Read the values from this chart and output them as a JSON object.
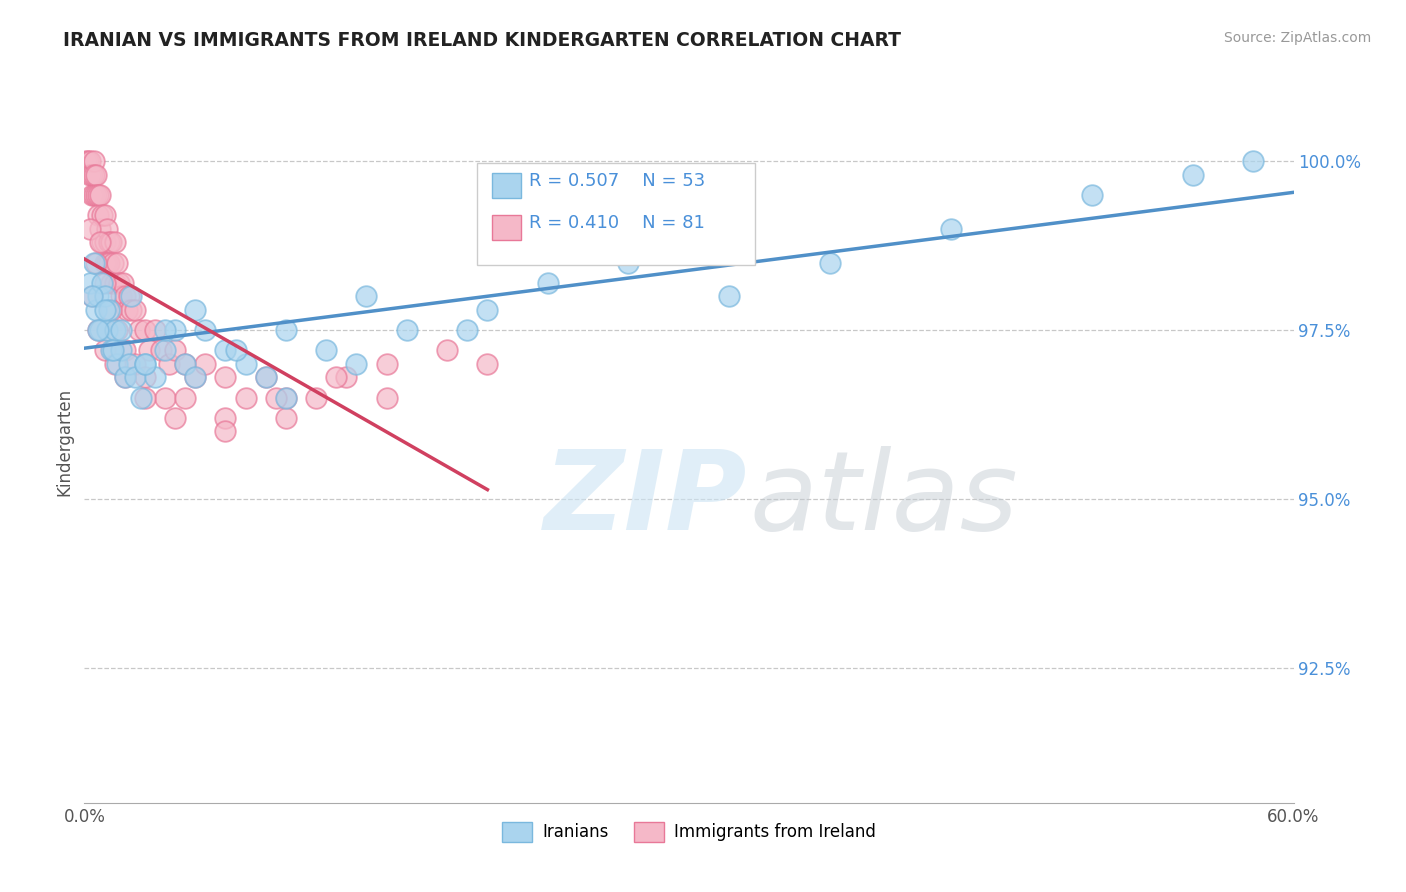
{
  "title": "IRANIAN VS IMMIGRANTS FROM IRELAND KINDERGARTEN CORRELATION CHART",
  "source_text": "Source: ZipAtlas.com",
  "ylabel": "Kindergarten",
  "x_min": 0.0,
  "x_max": 60.0,
  "y_min": 90.5,
  "y_max": 101.2,
  "x_ticks": [
    0.0,
    10.0,
    20.0,
    30.0,
    40.0,
    50.0,
    60.0
  ],
  "x_tick_labels": [
    "0.0%",
    "",
    "",
    "",
    "",
    "",
    "60.0%"
  ],
  "y_ticks": [
    92.5,
    95.0,
    97.5,
    100.0
  ],
  "y_tick_labels": [
    "92.5%",
    "95.0%",
    "97.5%",
    "100.0%"
  ],
  "legend_labels": [
    "Iranians",
    "Immigrants from Ireland"
  ],
  "blue_color": "#aad4ee",
  "pink_color": "#f5b8c8",
  "blue_edge": "#7ab8de",
  "pink_edge": "#e87898",
  "blue_line_color": "#5090c8",
  "pink_line_color": "#d04060",
  "R_blue": 0.507,
  "N_blue": 53,
  "R_pink": 0.41,
  "N_pink": 81,
  "blue_scatter_x": [
    0.3,
    0.5,
    0.6,
    0.7,
    0.8,
    0.9,
    1.0,
    1.1,
    1.2,
    1.3,
    1.5,
    1.6,
    1.8,
    2.0,
    2.2,
    2.5,
    2.8,
    3.0,
    3.5,
    4.0,
    4.5,
    5.0,
    5.5,
    6.0,
    7.0,
    8.0,
    9.0,
    10.0,
    12.0,
    14.0,
    16.0,
    20.0,
    23.0,
    27.0,
    32.0,
    37.0,
    43.0,
    50.0,
    55.0,
    58.0,
    0.4,
    0.7,
    1.0,
    1.4,
    1.8,
    2.3,
    3.0,
    4.0,
    5.5,
    7.5,
    10.0,
    13.5,
    19.0
  ],
  "blue_scatter_y": [
    98.2,
    98.5,
    97.8,
    98.0,
    97.5,
    98.2,
    98.0,
    97.5,
    97.8,
    97.2,
    97.5,
    97.0,
    97.2,
    96.8,
    97.0,
    96.8,
    96.5,
    97.0,
    96.8,
    97.2,
    97.5,
    97.0,
    97.8,
    97.5,
    97.2,
    97.0,
    96.8,
    97.5,
    97.2,
    98.0,
    97.5,
    97.8,
    98.2,
    98.5,
    98.0,
    98.5,
    99.0,
    99.5,
    99.8,
    100.0,
    98.0,
    97.5,
    97.8,
    97.2,
    97.5,
    98.0,
    97.0,
    97.5,
    96.8,
    97.2,
    96.5,
    97.0,
    97.5
  ],
  "pink_scatter_x": [
    0.1,
    0.2,
    0.3,
    0.3,
    0.4,
    0.4,
    0.5,
    0.5,
    0.5,
    0.6,
    0.6,
    0.7,
    0.7,
    0.8,
    0.8,
    0.9,
    0.9,
    1.0,
    1.0,
    1.0,
    1.1,
    1.1,
    1.2,
    1.2,
    1.3,
    1.3,
    1.4,
    1.5,
    1.5,
    1.6,
    1.7,
    1.8,
    1.9,
    2.0,
    2.1,
    2.2,
    2.3,
    2.5,
    2.7,
    3.0,
    3.2,
    3.5,
    3.8,
    4.2,
    4.5,
    5.0,
    5.5,
    6.0,
    7.0,
    8.0,
    9.0,
    10.0,
    11.5,
    13.0,
    15.0,
    18.0,
    0.3,
    0.6,
    0.8,
    1.0,
    1.3,
    1.6,
    2.0,
    2.5,
    3.0,
    4.0,
    5.0,
    7.0,
    9.5,
    12.5,
    0.4,
    0.7,
    1.0,
    1.5,
    2.0,
    3.0,
    4.5,
    7.0,
    10.0,
    15.0,
    20.0
  ],
  "pink_scatter_y": [
    100.0,
    100.0,
    100.0,
    99.8,
    99.8,
    99.5,
    100.0,
    99.8,
    99.5,
    99.8,
    99.5,
    99.5,
    99.2,
    99.5,
    99.0,
    99.2,
    98.8,
    99.2,
    98.8,
    98.5,
    99.0,
    98.5,
    98.8,
    98.5,
    98.8,
    98.2,
    98.5,
    98.8,
    98.2,
    98.5,
    98.2,
    98.0,
    98.2,
    98.0,
    97.8,
    98.0,
    97.8,
    97.8,
    97.5,
    97.5,
    97.2,
    97.5,
    97.2,
    97.0,
    97.2,
    97.0,
    96.8,
    97.0,
    96.8,
    96.5,
    96.8,
    96.5,
    96.5,
    96.8,
    97.0,
    97.2,
    99.0,
    98.5,
    98.8,
    98.2,
    97.8,
    97.5,
    97.2,
    97.0,
    96.8,
    96.5,
    96.5,
    96.2,
    96.5,
    96.8,
    98.0,
    97.5,
    97.2,
    97.0,
    96.8,
    96.5,
    96.2,
    96.0,
    96.2,
    96.5,
    97.0
  ]
}
